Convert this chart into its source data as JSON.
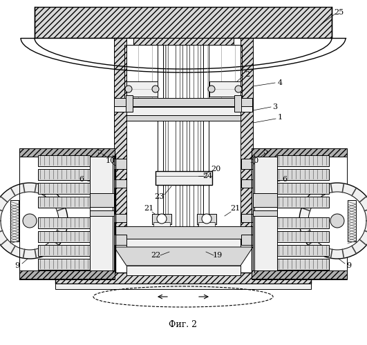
{
  "title": "Фиг. 2",
  "bg_color": "#ffffff",
  "lc": "#000000",
  "gray_light": "#f0f0f0",
  "gray_med": "#d8d8d8",
  "gray_dark": "#b0b0b0"
}
